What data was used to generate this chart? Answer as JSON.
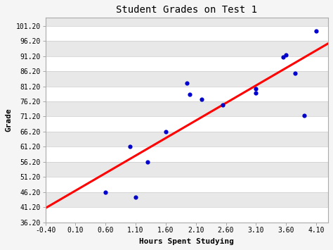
{
  "title": "Student Grades on Test 1",
  "xlabel": "Hours Spent Studying",
  "ylabel": "Grade",
  "scatter_x": [
    0.6,
    1.0,
    1.1,
    1.3,
    1.6,
    1.95,
    2.0,
    2.2,
    2.55,
    3.1,
    3.1,
    3.55,
    3.6,
    3.75,
    3.9,
    4.1
  ],
  "scatter_y": [
    46.2,
    61.2,
    44.5,
    56.2,
    66.2,
    82.2,
    78.5,
    76.8,
    75.0,
    80.5,
    79.0,
    91.0,
    91.5,
    85.5,
    71.5,
    99.5
  ],
  "xlim": [
    -0.4,
    4.3
  ],
  "ylim": [
    36.2,
    104.0
  ],
  "xticks": [
    -0.4,
    0.1,
    0.6,
    1.1,
    1.6,
    2.1,
    2.6,
    3.1,
    3.6,
    4.1
  ],
  "yticks": [
    36.2,
    41.2,
    46.2,
    51.2,
    56.2,
    61.2,
    66.2,
    71.2,
    76.2,
    81.2,
    86.2,
    91.2,
    96.2,
    101.2
  ],
  "scatter_color": "#0000cc",
  "line_color": "#ff0000",
  "bg_color": "#e8e8e8",
  "fig_bg_color": "#f5f5f5",
  "title_fontsize": 10,
  "axis_label_fontsize": 8,
  "tick_fontsize": 7,
  "line_x_start": -0.4,
  "line_x_end": 4.3
}
